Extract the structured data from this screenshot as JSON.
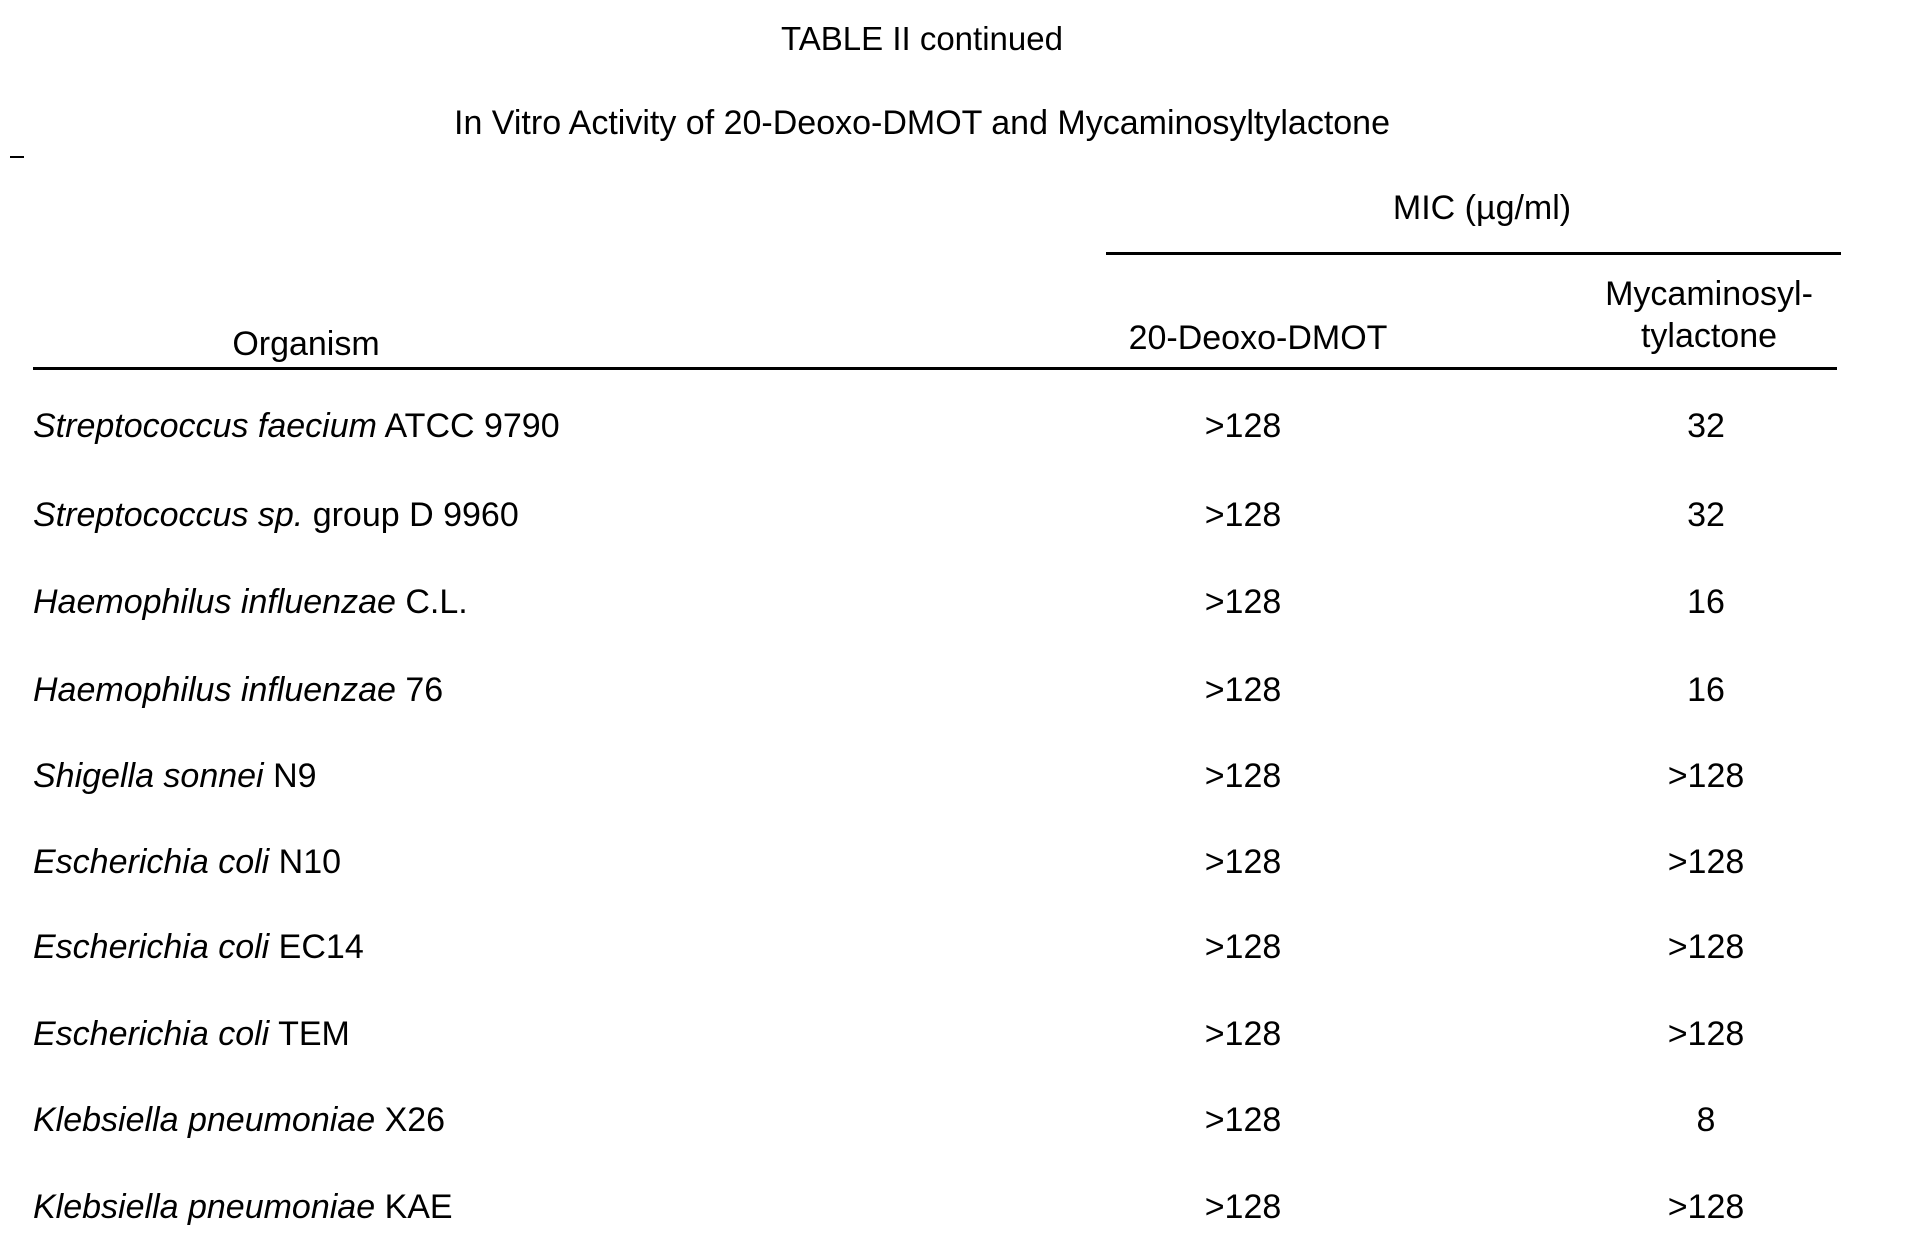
{
  "title": "TABLE II continued",
  "subtitle": "In Vitro Activity of 20-Deoxo-DMOT and Mycaminosyltylactone",
  "header": {
    "group": "MIC (µg/ml)",
    "col_organism": "Organism",
    "col_a": "20-Deoxo-DMOT",
    "col_b_line1": "Mycaminosyl-",
    "col_b_line2": "tylactone"
  },
  "rows": [
    {
      "species": "Streptococcus faecium",
      "strain": "ATCC 9790",
      "a": ">128",
      "b": "32"
    },
    {
      "species": "Streptococcus sp.",
      "strain": "group D 9960",
      "a": ">128",
      "b": "32"
    },
    {
      "species": "Haemophilus influenzae",
      "strain": "C.L.",
      "a": ">128",
      "b": "16"
    },
    {
      "species": "Haemophilus influenzae",
      "strain": "76",
      "a": ">128",
      "b": "16"
    },
    {
      "species": "Shigella sonnei",
      "strain": "N9",
      "a": ">128",
      "b": ">128"
    },
    {
      "species": "Escherichia coli",
      "strain": "N10",
      "a": ">128",
      "b": ">128"
    },
    {
      "species": "Escherichia coli",
      "strain": "EC14",
      "a": ">128",
      "b": ">128"
    },
    {
      "species": "Escherichia coli",
      "strain": "TEM",
      "a": ">128",
      "b": ">128"
    },
    {
      "species": "Klebsiella pneumoniae",
      "strain": "X26",
      "a": ">128",
      "b": "8"
    },
    {
      "species": "Klebsiella pneumoniae",
      "strain": "KAE",
      "a": ">128",
      "b": ">128"
    }
  ]
}
